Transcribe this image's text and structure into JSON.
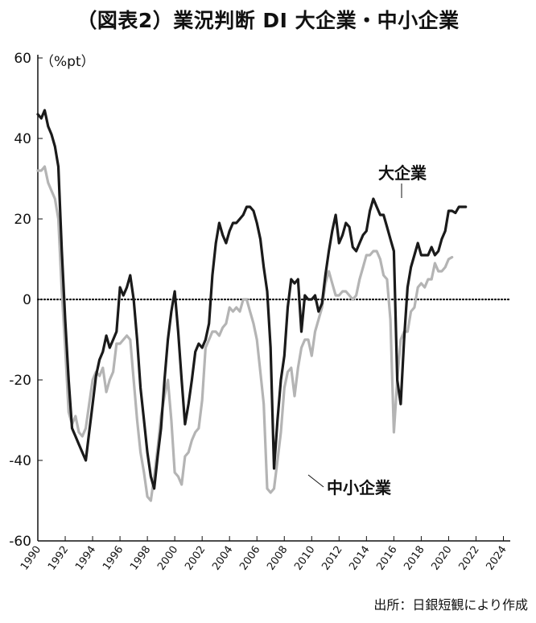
{
  "title": "（図表2）業況判断 DI 大企業・中小企業",
  "source": "出所：日銀短観により作成",
  "chart_data": {
    "type": "line",
    "title": "（図表2）業況判断 DI 大企業・中小企業",
    "ylabel": "（%pt）",
    "xlabel": "",
    "ylim": [
      -60,
      60
    ],
    "yticks": [
      "60",
      "40",
      "20",
      "0",
      "-20",
      "-40",
      "-60"
    ],
    "xlim": [
      1990,
      2024.5
    ],
    "xticks": [
      "1990",
      "1992",
      "1994",
      "1996",
      "1998",
      "2000",
      "2002",
      "2004",
      "2006",
      "2008",
      "2010",
      "2012",
      "2014",
      "2016",
      "2018",
      "2020",
      "2022",
      "2024"
    ],
    "zero_line": "dotted",
    "grid": false,
    "series": [
      {
        "name": "大企業",
        "color": "#1a1a1a",
        "points": [
          [
            1990.0,
            46
          ],
          [
            1990.25,
            45
          ],
          [
            1990.5,
            47
          ],
          [
            1990.75,
            43
          ],
          [
            1991.0,
            41
          ],
          [
            1991.25,
            38
          ],
          [
            1991.5,
            33
          ],
          [
            1991.75,
            12
          ],
          [
            1992.0,
            -5
          ],
          [
            1992.25,
            -20
          ],
          [
            1992.5,
            -32
          ],
          [
            1992.75,
            -34
          ],
          [
            1993.0,
            -36
          ],
          [
            1993.25,
            -38
          ],
          [
            1993.5,
            -40
          ],
          [
            1993.75,
            -33
          ],
          [
            1994.0,
            -26
          ],
          [
            1994.25,
            -19
          ],
          [
            1994.5,
            -15
          ],
          [
            1994.75,
            -13
          ],
          [
            1995.0,
            -9
          ],
          [
            1995.25,
            -12
          ],
          [
            1995.5,
            -10
          ],
          [
            1995.75,
            -8
          ],
          [
            1996.0,
            3
          ],
          [
            1996.25,
            1
          ],
          [
            1996.5,
            3
          ],
          [
            1996.75,
            6
          ],
          [
            1997.0,
            0
          ],
          [
            1997.25,
            -10
          ],
          [
            1997.5,
            -22
          ],
          [
            1997.75,
            -30
          ],
          [
            1998.0,
            -38
          ],
          [
            1998.25,
            -44
          ],
          [
            1998.5,
            -47
          ],
          [
            1998.75,
            -39
          ],
          [
            1999.0,
            -32
          ],
          [
            1999.25,
            -20
          ],
          [
            1999.5,
            -10
          ],
          [
            1999.75,
            -3
          ],
          [
            2000.0,
            2
          ],
          [
            2000.25,
            -8
          ],
          [
            2000.5,
            -20
          ],
          [
            2000.75,
            -31
          ],
          [
            2001.0,
            -26
          ],
          [
            2001.25,
            -20
          ],
          [
            2001.5,
            -13
          ],
          [
            2001.75,
            -11
          ],
          [
            2002.0,
            -12
          ],
          [
            2002.25,
            -10
          ],
          [
            2002.5,
            -6
          ],
          [
            2002.75,
            6
          ],
          [
            2003.0,
            14
          ],
          [
            2003.25,
            19
          ],
          [
            2003.5,
            16
          ],
          [
            2003.75,
            14
          ],
          [
            2004.0,
            17
          ],
          [
            2004.25,
            19
          ],
          [
            2004.5,
            19
          ],
          [
            2004.75,
            20
          ],
          [
            2005.0,
            21
          ],
          [
            2005.25,
            23
          ],
          [
            2005.5,
            23
          ],
          [
            2005.75,
            22
          ],
          [
            2006.0,
            19
          ],
          [
            2006.25,
            15
          ],
          [
            2006.5,
            8
          ],
          [
            2006.75,
            2
          ],
          [
            2007.0,
            -12
          ],
          [
            2007.25,
            -42
          ],
          [
            2007.5,
            -30
          ],
          [
            2007.75,
            -20
          ],
          [
            2008.0,
            -14
          ],
          [
            2008.25,
            -2
          ],
          [
            2008.5,
            5
          ],
          [
            2008.75,
            4
          ],
          [
            2009.0,
            5
          ],
          [
            2009.25,
            -8
          ],
          [
            2009.5,
            1
          ],
          [
            2009.75,
            0
          ],
          [
            2010.0,
            0
          ],
          [
            2010.25,
            1
          ],
          [
            2010.5,
            -3
          ],
          [
            2010.75,
            -1
          ],
          [
            2011.0,
            6
          ],
          [
            2011.25,
            12
          ],
          [
            2011.5,
            17
          ],
          [
            2011.75,
            21
          ],
          [
            2012.0,
            14
          ],
          [
            2012.25,
            16
          ],
          [
            2012.5,
            19
          ],
          [
            2012.75,
            18
          ],
          [
            2013.0,
            13
          ],
          [
            2013.25,
            12
          ],
          [
            2013.5,
            14
          ],
          [
            2013.75,
            16
          ],
          [
            2014.0,
            17
          ],
          [
            2014.25,
            22
          ],
          [
            2014.5,
            25
          ],
          [
            2014.75,
            23
          ],
          [
            2015.0,
            21
          ],
          [
            2015.25,
            21
          ],
          [
            2015.5,
            18
          ],
          [
            2015.75,
            15
          ],
          [
            2016.0,
            12
          ],
          [
            2016.25,
            -20
          ],
          [
            2016.5,
            -26
          ],
          [
            2016.75,
            -10
          ],
          [
            2017.0,
            3
          ],
          [
            2017.25,
            8
          ],
          [
            2017.5,
            11
          ],
          [
            2017.75,
            14
          ],
          [
            2018.0,
            11
          ],
          [
            2018.25,
            11
          ],
          [
            2018.5,
            11
          ],
          [
            2018.75,
            13
          ],
          [
            2019.0,
            11
          ],
          [
            2019.25,
            12
          ],
          [
            2019.5,
            15
          ],
          [
            2019.75,
            17
          ],
          [
            2020.0,
            22
          ],
          [
            2020.25,
            22
          ],
          [
            2020.5,
            21.5
          ],
          [
            2020.75,
            23
          ],
          [
            2021.0,
            23
          ],
          [
            2021.25,
            23
          ]
        ]
      },
      {
        "name": "中小企業",
        "color": "#b4b4b4",
        "points": [
          [
            1990.0,
            32
          ],
          [
            1990.25,
            32
          ],
          [
            1990.5,
            33
          ],
          [
            1990.75,
            29
          ],
          [
            1991.0,
            27
          ],
          [
            1991.25,
            25
          ],
          [
            1991.5,
            20
          ],
          [
            1991.75,
            2
          ],
          [
            1992.0,
            -12
          ],
          [
            1992.25,
            -28
          ],
          [
            1992.5,
            -31
          ],
          [
            1992.75,
            -29
          ],
          [
            1993.0,
            -33
          ],
          [
            1993.25,
            -34
          ],
          [
            1993.5,
            -32
          ],
          [
            1993.75,
            -26
          ],
          [
            1994.0,
            -20
          ],
          [
            1994.25,
            -18
          ],
          [
            1994.5,
            -19
          ],
          [
            1994.75,
            -17
          ],
          [
            1995.0,
            -23
          ],
          [
            1995.25,
            -20
          ],
          [
            1995.5,
            -18
          ],
          [
            1995.75,
            -11
          ],
          [
            1996.0,
            -11
          ],
          [
            1996.25,
            -10
          ],
          [
            1996.5,
            -9
          ],
          [
            1996.75,
            -10
          ],
          [
            1997.0,
            -20
          ],
          [
            1997.25,
            -30
          ],
          [
            1997.5,
            -38
          ],
          [
            1997.75,
            -43
          ],
          [
            1998.0,
            -49
          ],
          [
            1998.25,
            -50
          ],
          [
            1998.5,
            -44
          ],
          [
            1998.75,
            -37
          ],
          [
            1999.0,
            -29
          ],
          [
            1999.25,
            -24
          ],
          [
            1999.5,
            -20
          ],
          [
            1999.75,
            -30
          ],
          [
            2000.0,
            -43
          ],
          [
            2000.25,
            -44
          ],
          [
            2000.5,
            -46
          ],
          [
            2000.75,
            -39
          ],
          [
            2001.0,
            -38
          ],
          [
            2001.25,
            -35
          ],
          [
            2001.5,
            -33
          ],
          [
            2001.75,
            -32
          ],
          [
            2002.0,
            -25
          ],
          [
            2002.25,
            -12
          ],
          [
            2002.5,
            -10
          ],
          [
            2002.75,
            -8
          ],
          [
            2003.0,
            -8
          ],
          [
            2003.25,
            -9
          ],
          [
            2003.5,
            -7
          ],
          [
            2003.75,
            -6
          ],
          [
            2004.0,
            -2
          ],
          [
            2004.25,
            -3
          ],
          [
            2004.5,
            -2
          ],
          [
            2004.75,
            -3
          ],
          [
            2005.0,
            0
          ],
          [
            2005.25,
            0
          ],
          [
            2005.5,
            -3
          ],
          [
            2005.75,
            -6
          ],
          [
            2006.0,
            -10
          ],
          [
            2006.25,
            -18
          ],
          [
            2006.5,
            -26
          ],
          [
            2006.75,
            -47
          ],
          [
            2007.0,
            -48
          ],
          [
            2007.25,
            -47
          ],
          [
            2007.5,
            -40
          ],
          [
            2007.75,
            -33
          ],
          [
            2008.0,
            -22
          ],
          [
            2008.25,
            -18
          ],
          [
            2008.5,
            -17
          ],
          [
            2008.75,
            -24
          ],
          [
            2009.0,
            -17
          ],
          [
            2009.25,
            -12
          ],
          [
            2009.5,
            -10
          ],
          [
            2009.75,
            -10
          ],
          [
            2010.0,
            -14
          ],
          [
            2010.25,
            -8
          ],
          [
            2010.5,
            -5
          ],
          [
            2010.75,
            -2
          ],
          [
            2011.0,
            4
          ],
          [
            2011.25,
            7
          ],
          [
            2011.5,
            4
          ],
          [
            2011.75,
            1
          ],
          [
            2012.0,
            1
          ],
          [
            2012.25,
            2
          ],
          [
            2012.5,
            2
          ],
          [
            2012.75,
            1
          ],
          [
            2013.0,
            0
          ],
          [
            2013.25,
            1
          ],
          [
            2013.5,
            5
          ],
          [
            2013.75,
            8
          ],
          [
            2014.0,
            11
          ],
          [
            2014.25,
            11
          ],
          [
            2014.5,
            12
          ],
          [
            2014.75,
            12
          ],
          [
            2015.0,
            10
          ],
          [
            2015.25,
            6
          ],
          [
            2015.5,
            5
          ],
          [
            2015.75,
            -5
          ],
          [
            2016.0,
            -33
          ],
          [
            2016.25,
            -20
          ],
          [
            2016.5,
            -10
          ],
          [
            2016.75,
            -8
          ],
          [
            2017.0,
            -8
          ],
          [
            2017.25,
            -3
          ],
          [
            2017.5,
            -2
          ],
          [
            2017.75,
            3
          ],
          [
            2018.0,
            4
          ],
          [
            2018.25,
            3
          ],
          [
            2018.5,
            5
          ],
          [
            2018.75,
            5
          ],
          [
            2019.0,
            9
          ],
          [
            2019.25,
            7
          ],
          [
            2019.5,
            7
          ],
          [
            2019.75,
            8
          ],
          [
            2020.0,
            10
          ],
          [
            2020.25,
            10.5
          ]
        ]
      }
    ]
  }
}
